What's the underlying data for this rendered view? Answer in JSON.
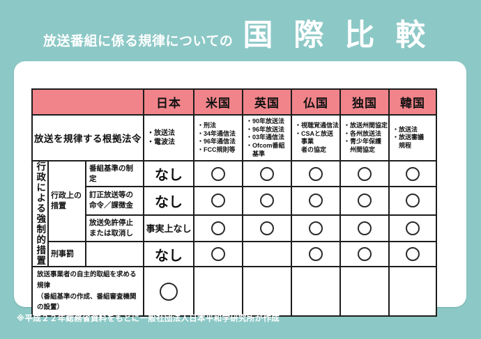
{
  "title": {
    "prefix": "放送番組に係る規律についての",
    "main": "国際比較"
  },
  "footnote": "※平成２２年総務省資料をもとに一般社団法人日本平和学研究所が作成",
  "colors": {
    "background_teal": "#8CC8C6",
    "header_pink": "#F0848A",
    "card_white": "#FFFFFF",
    "border_black": "#1C1C1C",
    "title_text": "#FFFFFF"
  },
  "table": {
    "countries": [
      "日本",
      "米国",
      "英国",
      "仏国",
      "独国",
      "韓国"
    ],
    "laws_label": "放送を規律する根拠法令",
    "laws": {
      "japan": [
        "放送法",
        "電波法"
      ],
      "usa": [
        "刑法",
        "34年通信法",
        "96年通信法",
        "FCC規則等"
      ],
      "uk": [
        "90年放送法",
        "96年放送法",
        "03年通信法",
        "Ofcom番組基準"
      ],
      "france": [
        "視聴覚通信法",
        "CSAと放送事業\n者の協定"
      ],
      "germany": [
        "放送州間協定",
        "各州放送法",
        "青少年保護\n州間協定"
      ],
      "korea": [
        "放送法",
        "放送審議\n規程"
      ]
    },
    "section_label": "行政による強制的措置",
    "group_label": "行政上の措置",
    "administrative_rows": [
      {
        "label": "番組基準の制定",
        "japan": "なし",
        "marks": [
          "○",
          "○",
          "○",
          "○",
          "○"
        ]
      },
      {
        "label": "訂正放送等の\n命令／課徴金",
        "japan": "なし",
        "marks": [
          "○",
          "○",
          "○",
          "○",
          "○"
        ]
      },
      {
        "label": "放送免許停止\nまたは取消し",
        "japan": "事実上なし",
        "marks": [
          "○",
          "○",
          "○",
          "○",
          "○"
        ]
      }
    ],
    "criminal_row": {
      "label": "刑事罰",
      "japan": "なし",
      "marks": [
        "○",
        "",
        "○",
        "○",
        "○"
      ]
    },
    "self_regulation_row": {
      "label_line1": "放送事業者の自主的取組を求める規律",
      "label_line2": "（番組基準の作成、番組審査機関の設置）",
      "japan_mark": "○",
      "marks": [
        "",
        "",
        "",
        "",
        ""
      ]
    }
  }
}
